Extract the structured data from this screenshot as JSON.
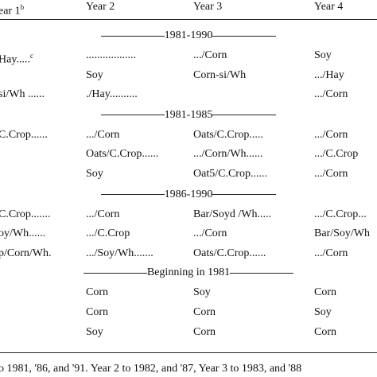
{
  "header": {
    "cells": [
      "ear 1",
      "Year 2",
      "Year 3",
      "Year 4"
    ],
    "note": "b"
  },
  "sections": [
    {
      "label": "1981-1990",
      "rows": [
        [
          {
            "text": "Hay.....",
            "note": "c"
          },
          "..................",
          ".../Corn",
          "Soy"
        ],
        [
          null,
          "Soy",
          "Corn-si/Wh",
          ".../Hay"
        ],
        [
          "si/Wh ......",
          "./Hay..........",
          null,
          ".../Corn"
        ]
      ]
    },
    {
      "label": "1981-1985",
      "rows": [
        [
          "C.Crop......",
          ".../Corn",
          "Oats/C.Crop.....",
          ".../Corn"
        ],
        [
          null,
          "Oats/C.Crop......",
          ".../Corn/Wh......",
          ".../C.Crop"
        ],
        [
          null,
          "Soy",
          "Oat5/C.Crop......",
          ".../Corn"
        ]
      ]
    },
    {
      "label": "1986-1990",
      "rows": [
        [
          "C.Crop.......",
          ".../Corn",
          "Bar/Soyd /Wh.....",
          ".../C.Crop..."
        ],
        [
          "oy/Wh......",
          ".../C.Crop",
          ".../Corn",
          "Bar/Soy/Wh"
        ],
        [
          "p/Corn/Wh.",
          ".../Soy/Wh.......",
          "Oats/C.Crop......",
          ".../Corn"
        ]
      ]
    },
    {
      "label": "Beginning in 1981",
      "rows": [
        [
          null,
          "Corn",
          "Soy",
          "Corn"
        ],
        [
          null,
          "Corn",
          "Corn",
          "Soy"
        ],
        [
          null,
          "Soy",
          "Corn",
          "Corn"
        ]
      ]
    }
  ],
  "footnote": "o 1981, '86, and '91. Year 2 to 1982, and '87, Year 3 to 1983, and '88"
}
